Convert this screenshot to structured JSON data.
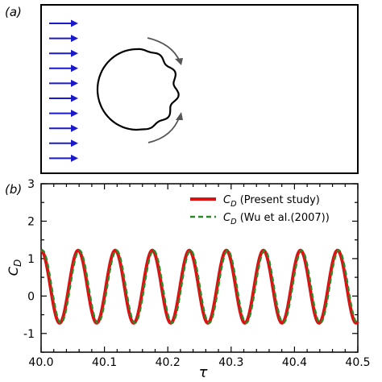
{
  "panel_a": {
    "label": "(a)",
    "flow_arrow_color": "#1a1acc",
    "flow_arrow_count": 10,
    "rotation_arrow_color": "#555555"
  },
  "chart_data": {
    "type": "line",
    "panel_label": "(b)",
    "xlabel": "τ",
    "ylabel": "C_D",
    "xlim": [
      40.0,
      40.5
    ],
    "ylim": [
      -1.5,
      3.0
    ],
    "xticks": [
      "40.0",
      "40.1",
      "40.2",
      "40.3",
      "40.4",
      "40.5"
    ],
    "yticks": [
      "-1",
      "0",
      "1",
      "2",
      "3"
    ],
    "grid": false,
    "legend_position": "top-right",
    "series": [
      {
        "name": "C_D (Present study)",
        "color": "#dd1111",
        "style": "solid",
        "mean": 0.25,
        "amplitude": 0.97,
        "period": 0.0585,
        "phase_x0": 40.0,
        "peaks_x": [
          40.0,
          40.0585,
          40.117,
          40.1755,
          40.234,
          40.2925,
          40.351,
          40.4095,
          40.468
        ],
        "peak_value": 1.22,
        "trough_value": -0.72
      },
      {
        "name": "C_D (Wu et al.(2007))",
        "color": "#2a8a2a",
        "style": "dashed",
        "mean": 0.25,
        "amplitude": 0.97,
        "period": 0.0585,
        "phase_x0": 40.002,
        "peaks_x": [
          40.002,
          40.0605,
          40.119,
          40.1775,
          40.236,
          40.2945,
          40.353,
          40.4115,
          40.47
        ],
        "peak_value": 1.22,
        "trough_value": -0.72
      }
    ]
  }
}
